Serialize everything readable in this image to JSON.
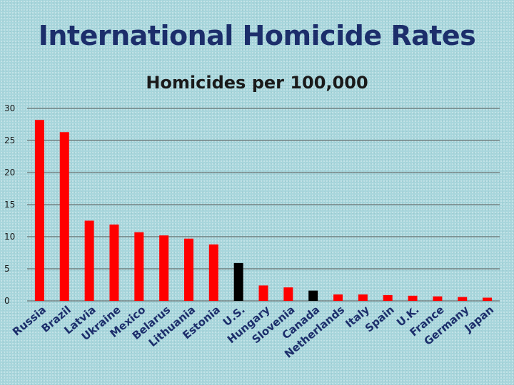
{
  "slide": {
    "title": "International Homicide Rates"
  },
  "colors": {
    "default_bar": "#ff0000",
    "highlight_bar": "#000000",
    "grid": "#555555"
  },
  "chart_data": {
    "type": "bar",
    "title": "Homicides per 100,000",
    "xlabel": "",
    "ylabel": "",
    "ylim": [
      0,
      30
    ],
    "yticks": [
      0,
      5,
      10,
      15,
      20,
      25,
      30
    ],
    "grid": true,
    "categories": [
      "Russia",
      "Brazil",
      "Latvia",
      "Ukraine",
      "Mexico",
      "Belarus",
      "Lithuania",
      "Estonia",
      "U.S.",
      "Hungary",
      "Slovenia",
      "Canada",
      "Netherlands",
      "Italy",
      "Spain",
      "U.K.",
      "France",
      "Germany",
      "Japan"
    ],
    "values": [
      28.2,
      26.3,
      12.5,
      11.9,
      10.7,
      10.2,
      9.7,
      8.8,
      5.9,
      2.4,
      2.1,
      1.6,
      1.0,
      1.0,
      0.9,
      0.8,
      0.7,
      0.6,
      0.5
    ],
    "highlight": [
      "U.S.",
      "Canada"
    ]
  }
}
